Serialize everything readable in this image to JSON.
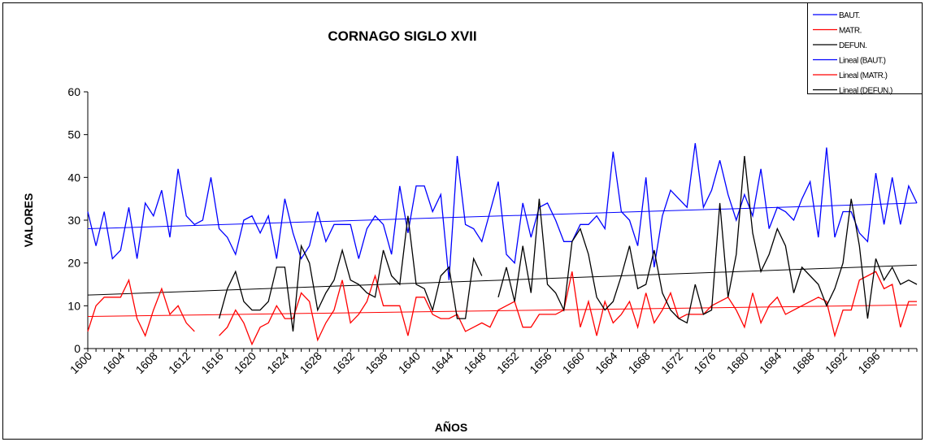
{
  "chart_data": {
    "type": "line",
    "title": "CORNAGO SIGLO XVII",
    "x_label": "AÑOS",
    "y_label": "VALORES",
    "categories": [
      "1600",
      null,
      null,
      null,
      "1604",
      null,
      null,
      null,
      "1608",
      null,
      null,
      null,
      "1612",
      null,
      null,
      null,
      "1616",
      null,
      null,
      null,
      "1620",
      null,
      null,
      null,
      "1624",
      null,
      null,
      null,
      "1628",
      null,
      null,
      null,
      "1632",
      null,
      null,
      null,
      "1636",
      null,
      null,
      null,
      "1640",
      null,
      null,
      null,
      "1644",
      null,
      null,
      null,
      "1648",
      null,
      null,
      null,
      "1652",
      null,
      null,
      null,
      "1656",
      null,
      null,
      null,
      "1660",
      null,
      null,
      null,
      "1664",
      null,
      null,
      null,
      "1668",
      null,
      null,
      null,
      "1672",
      null,
      null,
      null,
      "1676",
      null,
      null,
      null,
      "1680",
      null,
      null,
      null,
      "1684",
      null,
      null,
      null,
      "1688",
      null,
      null,
      null,
      "1692",
      null,
      null,
      null,
      "1696",
      null,
      null,
      null,
      null,
      null
    ],
    "ylim": [
      0,
      60
    ],
    "yticks": [
      0,
      10,
      20,
      30,
      40,
      50,
      60
    ],
    "legend": "top-right",
    "series": [
      {
        "name": "BAUT.",
        "color": "#0000ff",
        "values": [
          32,
          24,
          32,
          21,
          23,
          33,
          21,
          34,
          31,
          37,
          26,
          42,
          31,
          29,
          30,
          40,
          28,
          26,
          22,
          30,
          31,
          27,
          31,
          21,
          35,
          27,
          21,
          24,
          32,
          25,
          29,
          29,
          29,
          21,
          28,
          31,
          29,
          22,
          38,
          27,
          38,
          38,
          32,
          36,
          16,
          45,
          29,
          28,
          25,
          32,
          39,
          22,
          20,
          34,
          26,
          33,
          34,
          30,
          25,
          25,
          29,
          29,
          31,
          28,
          46,
          32,
          30,
          24,
          40,
          19,
          31,
          37,
          35,
          33,
          48,
          33,
          37,
          44,
          36,
          30,
          36,
          31,
          42,
          28,
          33,
          32,
          30,
          35,
          39,
          26,
          47,
          26,
          32,
          32,
          27,
          25,
          41,
          29,
          40,
          29,
          38,
          34
        ]
      },
      {
        "name": "MATR.",
        "color": "#ff0000",
        "values": [
          4,
          10,
          12,
          12,
          12,
          16,
          7,
          3,
          9,
          14,
          8,
          10,
          6,
          4,
          null,
          null,
          3,
          5,
          9,
          6,
          1,
          5,
          6,
          10,
          7,
          7,
          13,
          11,
          2,
          6,
          9,
          16,
          6,
          8,
          11,
          17,
          10,
          10,
          10,
          3,
          12,
          12,
          8,
          7,
          7,
          8,
          4,
          5,
          6,
          5,
          9,
          10,
          11,
          5,
          5,
          8,
          8,
          8,
          9,
          18,
          5,
          11,
          3,
          11,
          6,
          8,
          11,
          5,
          13,
          6,
          9,
          13,
          7,
          8,
          8,
          8,
          10,
          11,
          12,
          9,
          5,
          13,
          6,
          10,
          12,
          8,
          9,
          10,
          11,
          12,
          11,
          3,
          9,
          9,
          16,
          17,
          18,
          14,
          15,
          5,
          11,
          11
        ]
      },
      {
        "name": "DEFUN.",
        "color": "#000000",
        "values": [
          null,
          null,
          null,
          null,
          null,
          null,
          null,
          null,
          null,
          null,
          null,
          null,
          null,
          null,
          null,
          null,
          7,
          14,
          18,
          11,
          9,
          9,
          11,
          19,
          19,
          4,
          24,
          20,
          9,
          13,
          16,
          23,
          16,
          15,
          13,
          12,
          23,
          17,
          15,
          31,
          15,
          14,
          9,
          17,
          19,
          7,
          7,
          21,
          17,
          null,
          12,
          19,
          11,
          24,
          13,
          35,
          15,
          13,
          9,
          25,
          28,
          22,
          12,
          9,
          11,
          17,
          24,
          14,
          15,
          23,
          13,
          9,
          7,
          6,
          15,
          8,
          9,
          34,
          12,
          22,
          45,
          27,
          18,
          22,
          28,
          24,
          13,
          19,
          17,
          15,
          10,
          14,
          20,
          35,
          24,
          7,
          21,
          16,
          19,
          15,
          16,
          15
        ]
      }
    ],
    "trendlines": [
      {
        "name": "Lineal (BAUT.)",
        "color": "#0000ff",
        "values": [
          28,
          34
        ]
      },
      {
        "name": "Lineal (MATR.)",
        "color": "#ff0000",
        "values": [
          7.5,
          10.2
        ]
      },
      {
        "name": "Lineal (DEFUN.)",
        "color": "#000000",
        "values": [
          12.5,
          19.5
        ]
      }
    ]
  }
}
